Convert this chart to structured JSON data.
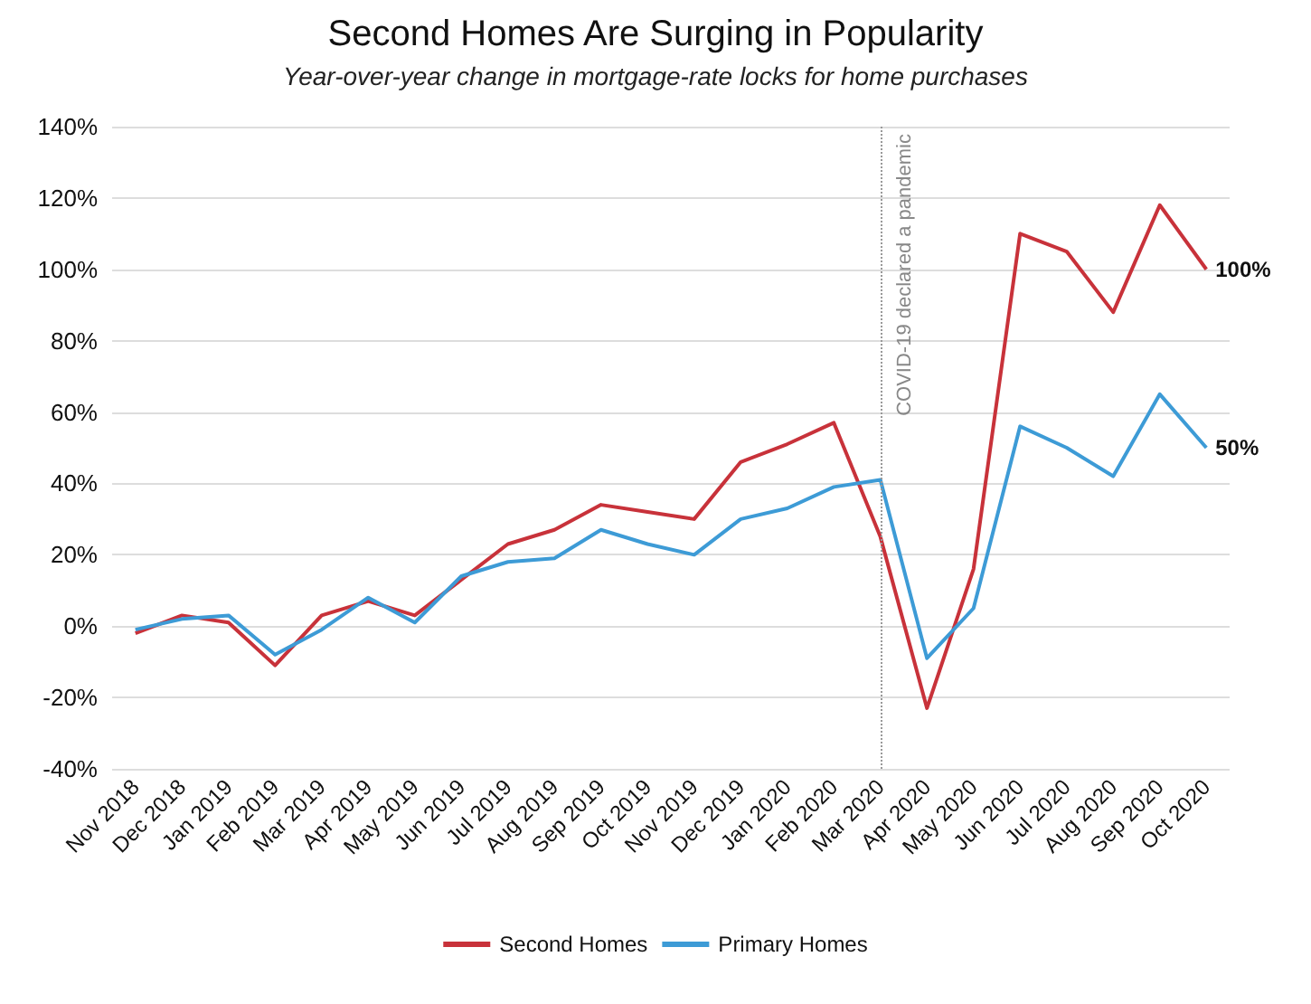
{
  "chart_data": {
    "type": "line",
    "title": "Second Homes Are Surging in Popularity",
    "subtitle": "Year-over-year change in mortgage-rate locks for home purchases",
    "categories": [
      "Nov 2018",
      "Dec 2018",
      "Jan 2019",
      "Feb 2019",
      "Mar 2019",
      "Apr 2019",
      "May 2019",
      "Jun 2019",
      "Jul 2019",
      "Aug 2019",
      "Sep 2019",
      "Oct 2019",
      "Nov 2019",
      "Dec 2019",
      "Jan 2020",
      "Feb 2020",
      "Mar 2020",
      "Apr 2020",
      "May 2020",
      "Jun 2020",
      "Jul 2020",
      "Aug 2020",
      "Sep 2020",
      "Oct 2020"
    ],
    "series": [
      {
        "name": "Second Homes",
        "color": "#c8323a",
        "values": [
          -2,
          3,
          1,
          -11,
          3,
          7,
          3,
          13,
          23,
          27,
          34,
          32,
          30,
          46,
          51,
          57,
          25,
          -23,
          16,
          110,
          105,
          88,
          118,
          100
        ],
        "value_labels": [
          null,
          null,
          null,
          null,
          null,
          null,
          null,
          null,
          null,
          null,
          null,
          null,
          null,
          null,
          null,
          null,
          null,
          null,
          null,
          null,
          null,
          null,
          null,
          "100%"
        ]
      },
      {
        "name": "Primary Homes",
        "color": "#3d9bd6",
        "values": [
          -1,
          2,
          3,
          -8,
          -1,
          8,
          1,
          14,
          18,
          19,
          27,
          23,
          20,
          30,
          33,
          39,
          41,
          -9,
          5,
          56,
          50,
          42,
          65,
          50
        ],
        "value_labels": [
          null,
          null,
          null,
          null,
          null,
          null,
          null,
          null,
          null,
          null,
          null,
          null,
          null,
          null,
          null,
          null,
          null,
          null,
          null,
          null,
          null,
          null,
          null,
          "50%"
        ]
      }
    ],
    "ylim": [
      -40,
      140
    ],
    "yticks": [
      {
        "value": -40,
        "label": "-40%"
      },
      {
        "value": -20,
        "label": "-20%"
      },
      {
        "value": 0,
        "label": "0%"
      },
      {
        "value": 20,
        "label": "20%"
      },
      {
        "value": 40,
        "label": "40%"
      },
      {
        "value": 60,
        "label": "60%"
      },
      {
        "value": 80,
        "label": "80%"
      },
      {
        "value": 100,
        "label": "100%"
      },
      {
        "value": 120,
        "label": "120%"
      },
      {
        "value": 140,
        "label": "140%"
      }
    ],
    "ref_lines": [
      {
        "axis": "x",
        "value": "Mar 2020",
        "label": "COVID-19 declared a pandemic",
        "color": "#999999",
        "line_style": "dotted"
      }
    ],
    "grid": "y",
    "legend": "bottom",
    "marker": "none",
    "line_style": "solid"
  }
}
